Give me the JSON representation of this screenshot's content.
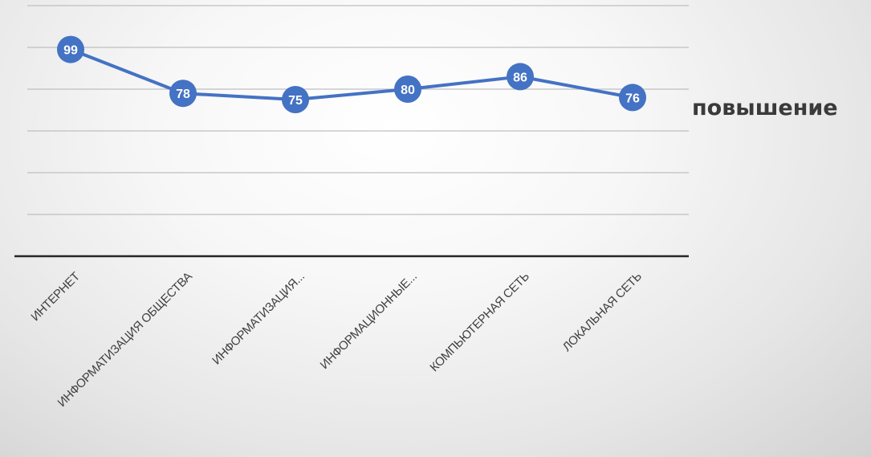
{
  "chart_data": {
    "type": "line",
    "categories": [
      "ИНТЕРНЕТ",
      "ИНФОРМАТИЗАЦИЯ ОБЩЕСТВА",
      "ИНФОРМАТИЗАЦИЯ...",
      "ИНФОРМАЦИОННЫЕ...",
      "КОМПЬЮТЕРНАЯ СЕТЬ",
      "ЛОКАЛЬНАЯ СЕТЬ"
    ],
    "series": [
      {
        "name": "повышение",
        "values": [
          99,
          78,
          75,
          80,
          86,
          76
        ],
        "color": "#4472c4"
      }
    ],
    "data_labels": [
      "99",
      "78",
      "75",
      "80",
      "86",
      "76"
    ],
    "ylim": [
      0,
      120
    ],
    "grid": true,
    "legend_position": "right",
    "colors": {
      "line": "#4472c4",
      "gridline": "#bfbfbf",
      "axis": "#262626",
      "label_text": "#404040",
      "legend_text": "#3a3a3a"
    }
  }
}
